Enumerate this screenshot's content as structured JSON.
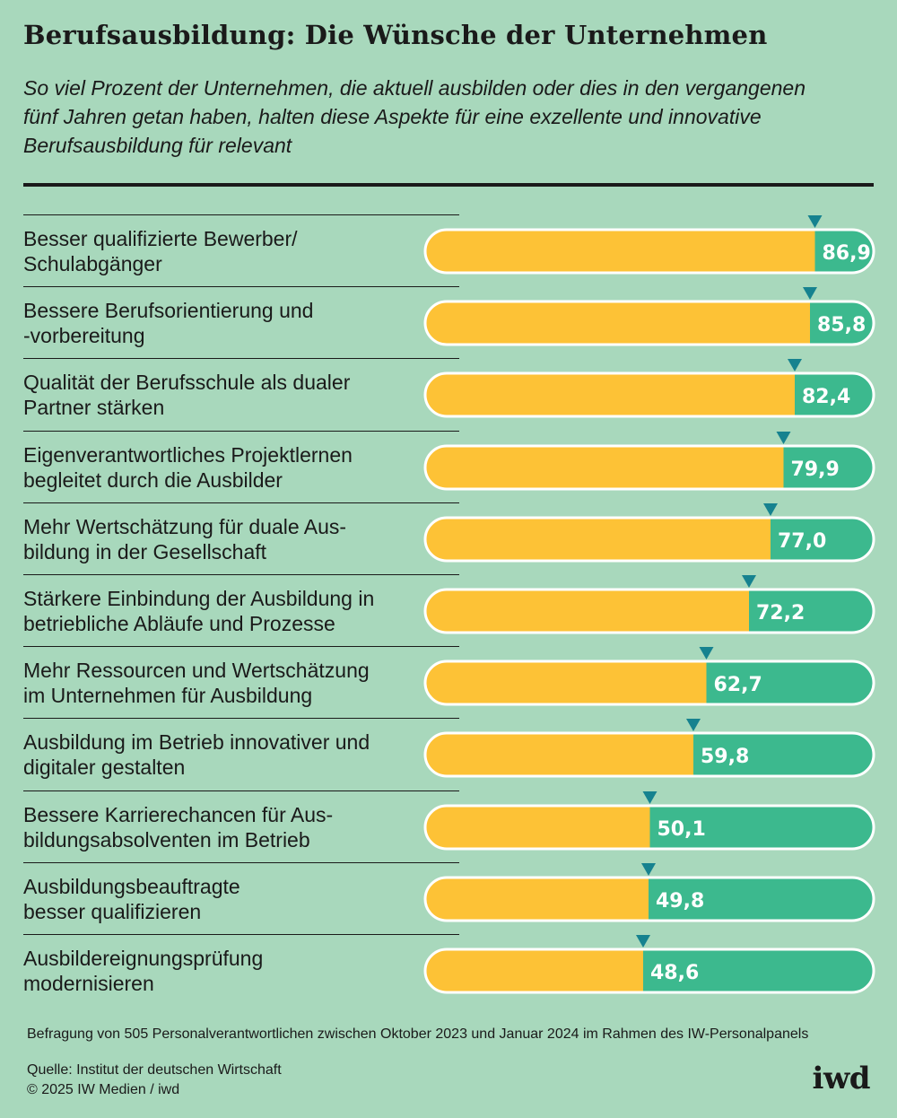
{
  "title": "Berufsausbildung: Die Wünsche der Unternehmen",
  "subtitle": "So viel Prozent der Unternehmen, die aktuell ausbilden oder dies in den vergangenen fünf Jahren getan haben, halten diese Aspekte für eine exzellente und innovative Berufsausbildung für relevant",
  "footnote": "Befragung von 505 Personalverantwortlichen zwischen Oktober 2023 und Januar 2024 im Rahmen des IW-Personalpanels",
  "source_line": "Quelle: Institut der deutschen Wirtschaft",
  "copyright_line": "© 2025 IW Medien / iwd",
  "logo_text": "iwd",
  "colors": {
    "background": "#a8d8bc",
    "bar_fill": "#fdc236",
    "bar_rest": "#3cb98e",
    "bar_border": "#ffffff",
    "marker": "#16828f",
    "value_text": "#ffffff"
  },
  "chart_data": {
    "type": "bar",
    "orientation": "horizontal",
    "xlim": [
      0,
      100
    ],
    "categories": [
      "Besser qualifizierte Bewerber/ Schulabgänger",
      "Bessere Berufsorientierung und -vorbereitung",
      "Qualität der Berufsschule als dualer Partner stärken",
      "Eigenverantwortliches Projektlernen begleitet durch die Ausbilder",
      "Mehr Wertschätzung für duale Aus-bildung in der Gesellschaft",
      "Stärkere Einbindung der Ausbildung in betriebliche Abläufe und Prozesse",
      "Mehr Ressourcen und Wertschätzung im Unternehmen für Ausbildung",
      "Ausbildung im Betrieb innovativer und digitaler gestalten",
      "Bessere Karrierechancen für Aus-bildungsabsolventen im Betrieb",
      "Ausbildungsbeauftragte besser qualifizieren",
      "Ausbildereignungsprüfung modernisieren"
    ],
    "label_lines": [
      [
        "Besser qualifizierte Bewerber/",
        "Schulabgänger"
      ],
      [
        "Bessere Berufsorientierung und",
        "-vorbereitung"
      ],
      [
        "Qualität der Berufsschule als dualer",
        "Partner stärken"
      ],
      [
        "Eigenverantwortliches Projektlernen",
        "begleitet durch die Ausbilder"
      ],
      [
        "Mehr Wertschätzung für duale Aus-",
        "bildung in der Gesellschaft"
      ],
      [
        "Stärkere Einbindung der Ausbildung in",
        "betriebliche Abläufe und Prozesse"
      ],
      [
        "Mehr Ressourcen und Wertschätzung",
        "im Unternehmen für Ausbildung"
      ],
      [
        "Ausbildung im Betrieb innovativer und",
        "digitaler gestalten"
      ],
      [
        "Bessere Karrierechancen für Aus-",
        "bildungsabsolventen im Betrieb"
      ],
      [
        "Ausbildungsbeauftragte",
        "besser qualifizieren"
      ],
      [
        "Ausbildereignungsprüfung",
        "modernisieren"
      ]
    ],
    "values": [
      86.9,
      85.8,
      82.4,
      79.9,
      77.0,
      72.2,
      62.7,
      59.8,
      50.1,
      49.8,
      48.6
    ],
    "value_labels": [
      "86,9",
      "85,8",
      "82,4",
      "79,9",
      "77,0",
      "72,2",
      "62,7",
      "59,8",
      "50,1",
      "49,8",
      "48,6"
    ],
    "legend": "none",
    "grid": false
  }
}
